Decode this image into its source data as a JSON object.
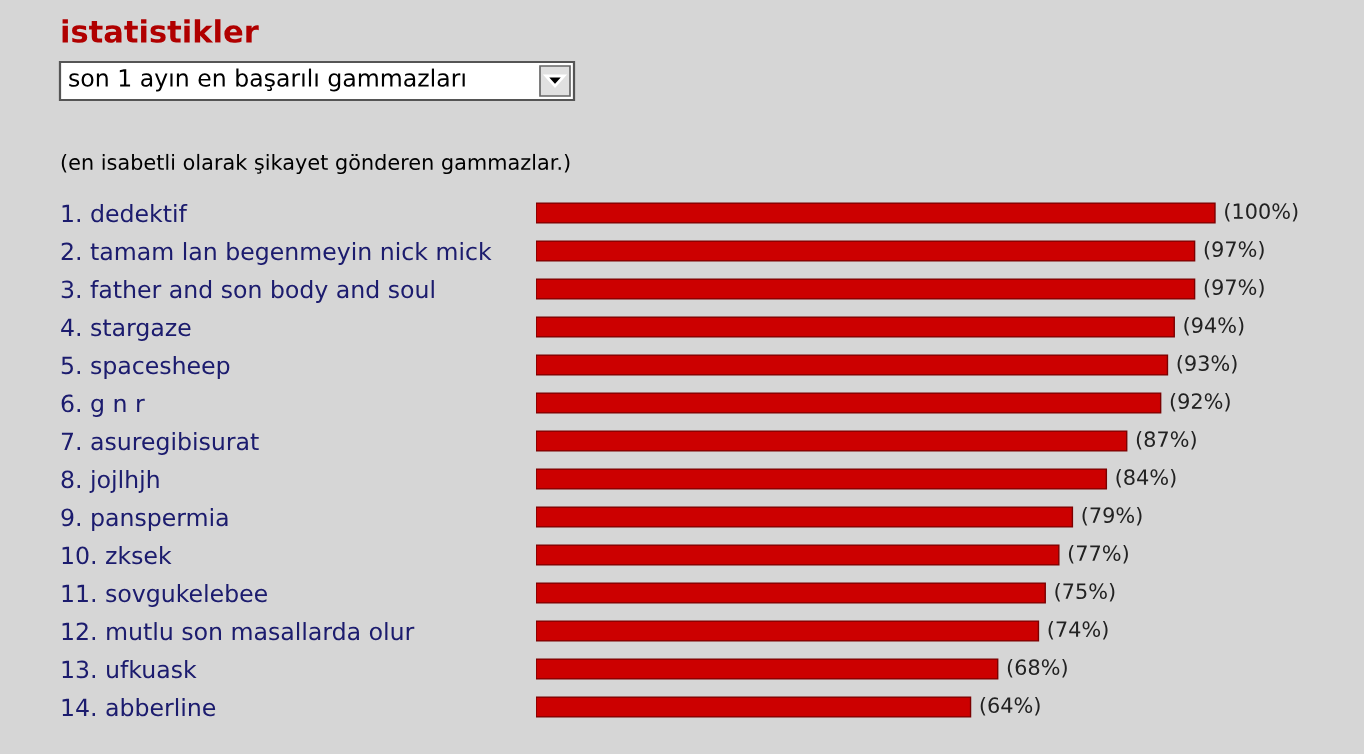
{
  "chart_data": {
    "type": "bar",
    "orientation": "horizontal",
    "title": "istatistikler",
    "subtitle": "son 1 ayın en başarılı gammazları",
    "annotations": [
      "(en isabetli olarak şikayet gönderen gammazlar.)"
    ],
    "categories": [
      "1. dedektif",
      "2. tamam lan begenmeyin nick mick",
      "3. father and son body and soul",
      "4. stargaze",
      "5. spacesheep",
      "6. g n r",
      "7. asuregibisurat",
      "8. jojlhjh",
      "9. panspermia",
      "10. zksek",
      "11. sovgukelebee",
      "12. mutlu son masallarda olur",
      "13. ufkuask",
      "14. abberline"
    ],
    "values": [
      100,
      97,
      97,
      94,
      93,
      92,
      87,
      84,
      79,
      77,
      75,
      74,
      68,
      64
    ],
    "value_labels": [
      "(100%)",
      "(97%)",
      "(97%)",
      "(94%)",
      "(93%)",
      "(92%)",
      "(87%)",
      "(84%)",
      "(79%)",
      "(77%)",
      "(75%)",
      "(74%)",
      "(68%)",
      "(64%)"
    ],
    "color": "#cc0000",
    "tick_labels": "y",
    "grid": false,
    "legend": false
  }
}
